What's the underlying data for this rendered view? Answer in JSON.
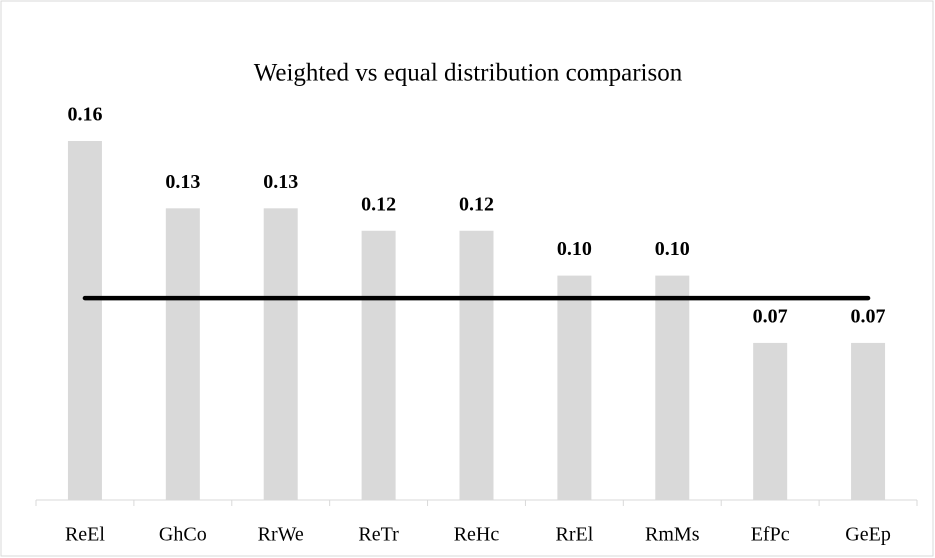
{
  "chart_data": {
    "type": "bar",
    "title": "Weighted vs equal distribution comparison",
    "categories": [
      "ReEl",
      "GhCo",
      "RrWe",
      "ReTr",
      "ReHc",
      "RrEl",
      "RmMs",
      "EfPc",
      "GeEp"
    ],
    "series": [
      {
        "type": "bar",
        "color": "#d9d9d9",
        "values": [
          0.16,
          0.13,
          0.13,
          0.12,
          0.12,
          0.1,
          0.1,
          0.07,
          0.07
        ],
        "value_labels": [
          "0.16",
          "0.13",
          "0.13",
          "0.12",
          "0.12",
          "0.10",
          "0.10",
          "0.07",
          "0.07"
        ]
      },
      {
        "type": "line",
        "color": "#000000",
        "values": [
          0.09,
          0.09,
          0.09,
          0.09,
          0.09,
          0.09,
          0.09,
          0.09,
          0.09
        ]
      }
    ]
  }
}
